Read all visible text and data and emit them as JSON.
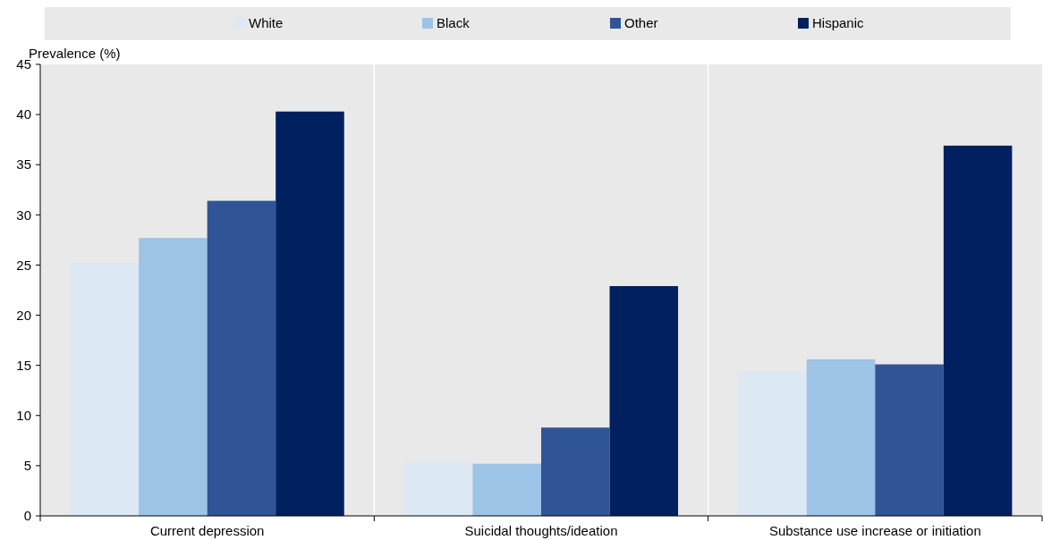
{
  "chart_data": {
    "type": "bar",
    "ylabel": "Prevalence (%)",
    "categories": [
      "Current depression",
      "Suicidal thoughts/ideation",
      "Substance use increase or initiation"
    ],
    "series": [
      {
        "name": "White",
        "color": "#dce8f4",
        "values": [
          25.2,
          5.3,
          14.4
        ]
      },
      {
        "name": "Black",
        "color": "#9dc3e6",
        "values": [
          27.7,
          5.2,
          15.6
        ]
      },
      {
        "name": "Other",
        "color": "#2f5597",
        "values": [
          31.4,
          8.8,
          15.1
        ]
      },
      {
        "name": "Hispanic",
        "color": "#002060",
        "values": [
          40.3,
          22.9,
          36.9
        ]
      }
    ],
    "ylim": [
      0,
      45
    ],
    "yticks": [
      0,
      5,
      10,
      15,
      20,
      25,
      30,
      35,
      40,
      45
    ],
    "grid": "x",
    "legend": "top"
  }
}
